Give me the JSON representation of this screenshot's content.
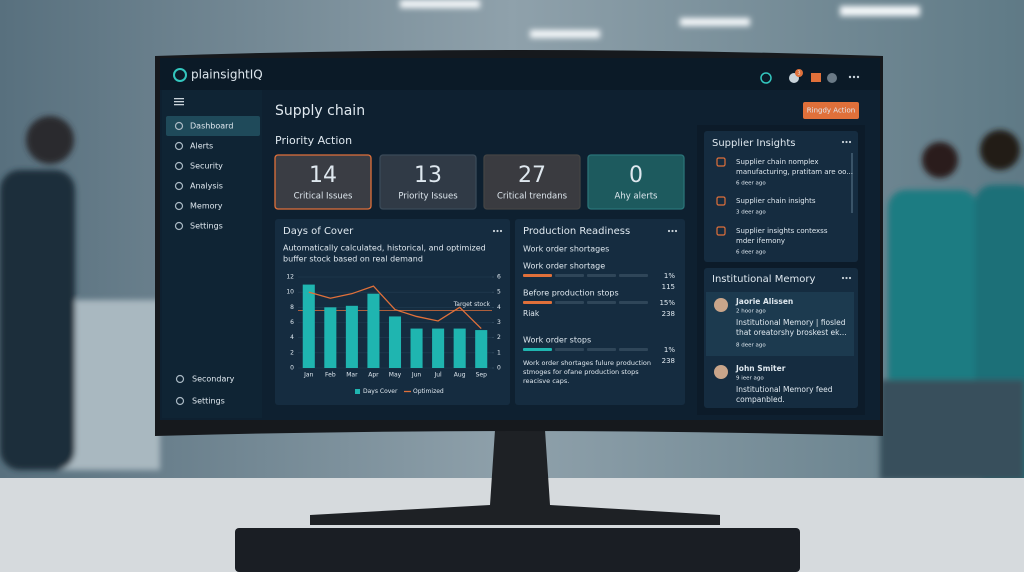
{
  "app": {
    "logo": "plainsightIQ",
    "badge": "3"
  },
  "sidebar": {
    "items": [
      "Dashboard",
      "Alerts",
      "Security",
      "Analysis",
      "Memory",
      "Settings"
    ],
    "bottom": [
      "Secondary",
      "Settings"
    ]
  },
  "header": {
    "title": "Supply chain",
    "button": "Ringdy Action"
  },
  "priority": {
    "title": "Priority Action",
    "cards": [
      {
        "value": "14",
        "label": "Critical Issues"
      },
      {
        "value": "13",
        "label": "Priority Issues"
      },
      {
        "value": "27",
        "label": "Critical trendans"
      },
      {
        "value": "0",
        "label": "Ahy alerts"
      }
    ]
  },
  "days_of_cover": {
    "title": "Days of Cover",
    "subtitle": [
      "Automatically calculated, historical, and optimized",
      "buffer stock based on real demand"
    ],
    "chart_data": {
      "type": "bar",
      "categories": [
        "Jan",
        "Feb",
        "Mar",
        "Apr",
        "May",
        "Jun",
        "Jul",
        "Aug",
        "Sep"
      ],
      "series": [
        {
          "name": "Days Cover",
          "type": "bar",
          "color": "#1fb5b0",
          "values": [
            11,
            8,
            8.2,
            9.8,
            6.8,
            5.2,
            5.2,
            5.2,
            5
          ]
        },
        {
          "name": "Optimized",
          "type": "line",
          "color": "#e0703a",
          "values": [
            10,
            9.2,
            9.8,
            10.8,
            7.7,
            6.8,
            6.2,
            8,
            5.2
          ]
        }
      ],
      "target": {
        "label": "Target stock",
        "value": 7.6
      },
      "ylim": [
        0,
        12
      ],
      "yticks": [
        0,
        2,
        4,
        6,
        8,
        10,
        12
      ],
      "y2lim": [
        0,
        6
      ],
      "y2ticks": [
        0,
        1,
        2,
        3,
        4,
        5,
        6
      ]
    }
  },
  "production": {
    "title": "Production Readiness",
    "subtitle": "Work order shortages",
    "rows": [
      {
        "label": "Work order shortage",
        "percent": "1%",
        "count": "115"
      },
      {
        "label": "Before production stops",
        "percent": "15%",
        "count": "238",
        "note": "Riak"
      },
      {
        "label": "Work order stops",
        "percent": "1%",
        "count": "238"
      }
    ],
    "description": [
      "Work order shortages fulure production",
      "stmoges for ofane production stops",
      "reacisve caps."
    ]
  },
  "supplier": {
    "title": "Supplier Insights",
    "items": [
      {
        "lines": [
          "Supplier chain nomplex",
          "manufacturing, pratitam are oo..."
        ],
        "time": "6 deer ago"
      },
      {
        "lines": [
          "Supplier chain insights"
        ],
        "time": "3 deer ago"
      },
      {
        "lines": [
          "Supplier insights contexss",
          "mder ifemony"
        ],
        "time": "6 deer ago"
      }
    ]
  },
  "memory": {
    "title": "Institutional Memory",
    "items": [
      {
        "name": "Jaorie Alissen",
        "time": "2 hoor ago",
        "lines": [
          "Institutional Memory | fiosled",
          "that oreatorshy broskest ek..."
        ],
        "time2": "8 deer ago"
      },
      {
        "name": "John Smiter",
        "time": "9 ieer ago",
        "lines": [
          "Institutional Memory feed",
          "companbled."
        ]
      }
    ]
  }
}
